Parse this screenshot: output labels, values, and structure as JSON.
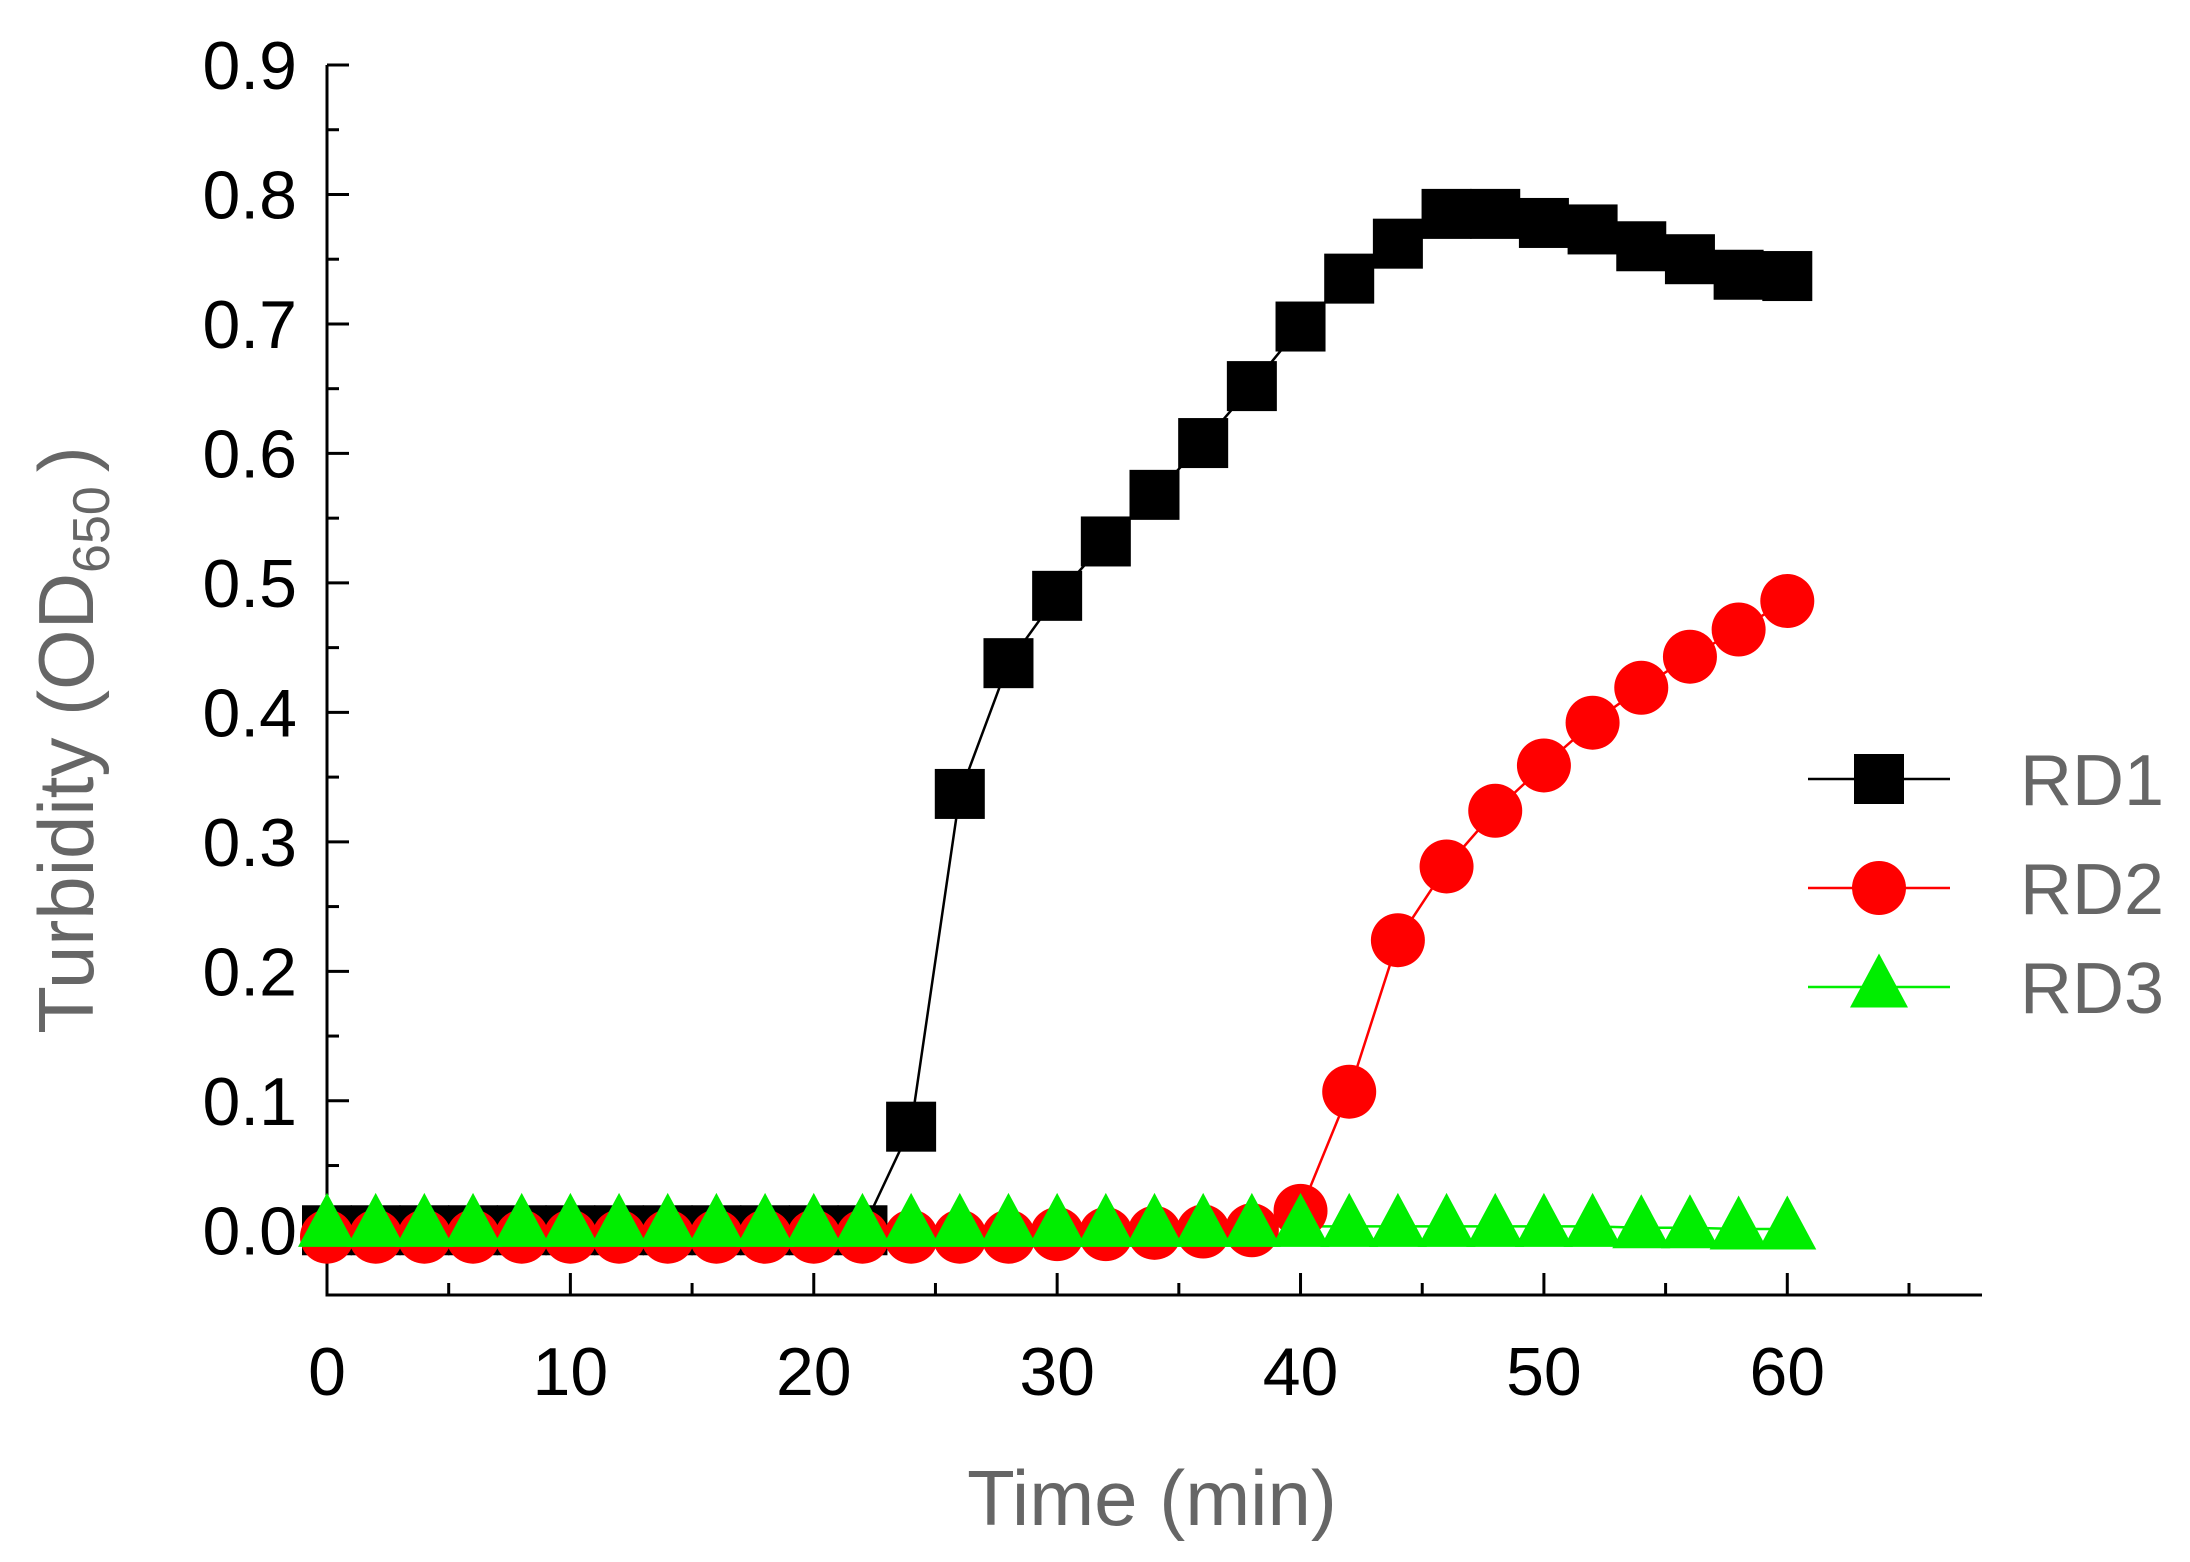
{
  "chart_data": {
    "type": "line",
    "title": "",
    "xlabel": "Time (min)",
    "ylabel": "Turbidity (OD",
    "ylabel_subscript": "650",
    "ylabel_suffix": ")",
    "xlim": [
      0,
      68
    ],
    "ylim": [
      -0.05,
      0.9
    ],
    "x_ticks": [
      0,
      10,
      20,
      30,
      40,
      50,
      60
    ],
    "x_tick_labels": [
      "0",
      "10",
      "20",
      "30",
      "40",
      "50",
      "60"
    ],
    "y_ticks": [
      0.0,
      0.1,
      0.2,
      0.3,
      0.4,
      0.5,
      0.6,
      0.7,
      0.8,
      0.9
    ],
    "y_tick_labels": [
      "0.0",
      "0.1",
      "0.2",
      "0.3",
      "0.4",
      "0.5",
      "0.6",
      "0.7",
      "0.8",
      "0.9"
    ],
    "grid": false,
    "legend_position": "right",
    "x": [
      0,
      2,
      4,
      6,
      8,
      10,
      12,
      14,
      16,
      18,
      20,
      22,
      24,
      26,
      28,
      30,
      32,
      34,
      36,
      38,
      40,
      42,
      44,
      46,
      48,
      50,
      52,
      54,
      56,
      58,
      60
    ],
    "series": [
      {
        "name": "RD1",
        "marker": "square",
        "color": "#000000",
        "values": [
          0.0,
          0.0,
          0.0,
          0.0,
          0.0,
          0.0,
          0.0,
          0.0,
          0.0,
          0.0,
          0.0,
          0.0,
          0.08,
          0.337,
          0.438,
          0.49,
          0.532,
          0.568,
          0.608,
          0.652,
          0.698,
          0.735,
          0.762,
          0.785,
          0.785,
          0.778,
          0.773,
          0.76,
          0.75,
          0.738,
          0.737
        ]
      },
      {
        "name": "RD2",
        "marker": "circle",
        "color": "#ff0000",
        "values": [
          -0.005,
          -0.005,
          -0.005,
          -0.005,
          -0.005,
          -0.005,
          -0.005,
          -0.005,
          -0.005,
          -0.005,
          -0.005,
          -0.005,
          -0.005,
          -0.005,
          -0.005,
          -0.003,
          -0.003,
          -0.002,
          -0.001,
          0.0,
          0.015,
          0.107,
          0.224,
          0.281,
          0.324,
          0.359,
          0.392,
          0.419,
          0.443,
          0.464,
          0.486
        ]
      },
      {
        "name": "RD3",
        "marker": "triangle",
        "color": "#00ee00",
        "values": [
          0.003,
          0.003,
          0.003,
          0.003,
          0.003,
          0.003,
          0.003,
          0.003,
          0.003,
          0.003,
          0.003,
          0.003,
          0.003,
          0.003,
          0.003,
          0.003,
          0.003,
          0.003,
          0.003,
          0.003,
          0.003,
          0.003,
          0.003,
          0.003,
          0.003,
          0.003,
          0.003,
          0.002,
          0.002,
          0.001,
          0.001
        ]
      }
    ]
  }
}
